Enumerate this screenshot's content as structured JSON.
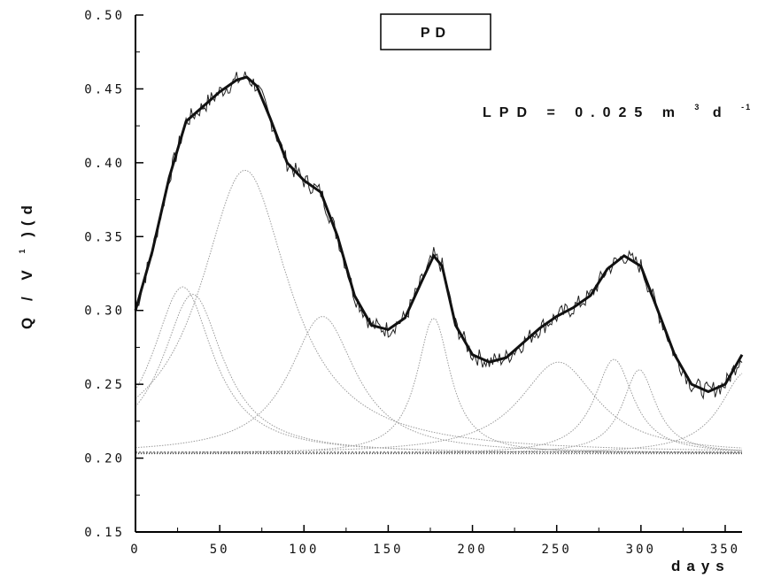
{
  "chart_data": {
    "type": "line",
    "title": "PD",
    "annotation": {
      "main": "LPD = 0.025 m",
      "sup1": "3",
      "mid": " d",
      "sup2": "-1"
    },
    "xlabel": "days",
    "ylabel": {
      "main": "Q  / V",
      "sup": "1",
      "tail": ")(d"
    },
    "xlim": [
      0,
      360
    ],
    "ylim": [
      0.15,
      0.5
    ],
    "xticks": [
      "0",
      "50",
      "100",
      "150",
      "200",
      "250",
      "300",
      "350"
    ],
    "yticks": [
      "0.15",
      "0.20",
      "0.25",
      "0.30",
      "0.35",
      "0.40",
      "0.45",
      "0.50"
    ],
    "baseline": 0.203,
    "components": [
      {
        "center": 28,
        "peak": 0.316,
        "width": 22
      },
      {
        "center": 34,
        "peak": 0.311,
        "width": 22
      },
      {
        "center": 65,
        "peak": 0.395,
        "width": 32
      },
      {
        "center": 111,
        "peak": 0.296,
        "width": 24
      },
      {
        "center": 177,
        "peak": 0.295,
        "width": 12
      },
      {
        "center": 251,
        "peak": 0.265,
        "width": 28
      },
      {
        "center": 284,
        "peak": 0.267,
        "width": 14
      },
      {
        "center": 299,
        "peak": 0.26,
        "width": 12
      },
      {
        "center": 362,
        "peak": 0.258,
        "width": 18
      }
    ],
    "series": [
      {
        "style": "fit",
        "x": [
          0,
          10,
          20,
          30,
          40,
          50,
          60,
          66,
          72,
          80,
          90,
          100,
          110,
          120,
          130,
          140,
          150,
          160,
          170,
          177,
          182,
          190,
          200,
          210,
          220,
          230,
          240,
          250,
          260,
          270,
          280,
          290,
          300,
          310,
          320,
          330,
          340,
          350,
          355,
          360
        ],
        "y": [
          0.3,
          0.34,
          0.39,
          0.428,
          0.438,
          0.448,
          0.456,
          0.458,
          0.452,
          0.43,
          0.4,
          0.388,
          0.38,
          0.35,
          0.31,
          0.29,
          0.287,
          0.295,
          0.32,
          0.337,
          0.33,
          0.29,
          0.27,
          0.265,
          0.268,
          0.278,
          0.288,
          0.296,
          0.302,
          0.31,
          0.328,
          0.337,
          0.33,
          0.3,
          0.27,
          0.25,
          0.245,
          0.25,
          0.26,
          0.27
        ]
      },
      {
        "style": "data",
        "noise": 0.006
      }
    ],
    "line_color": "#111111",
    "component_color": "#9a9a9a"
  }
}
